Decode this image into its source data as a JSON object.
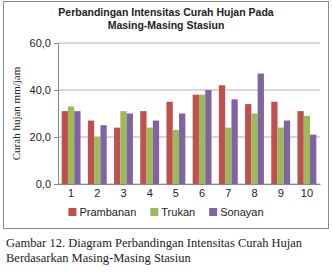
{
  "chart_data": {
    "type": "bar",
    "title": "Perbandingan Intensitas Curah Hujan Pada Masing-Masing Stasiun",
    "y_label": "Curah hujan mm/jam",
    "caption": "Gambar 12. Diagram Perbandingan Intensitas Curah Hujan Berdasarkan Masing-Masing Stasiun",
    "categories": [
      "1",
      "2",
      "3",
      "4",
      "5",
      "6",
      "7",
      "8",
      "9",
      "10"
    ],
    "series": [
      {
        "name": "Prambanan",
        "color": "#c0504d",
        "values": [
          31,
          27,
          24,
          31,
          35,
          38,
          42,
          34,
          35,
          31
        ]
      },
      {
        "name": "Trukan",
        "color": "#9bbb59",
        "values": [
          33,
          20,
          31,
          24,
          23,
          38,
          24,
          30,
          24,
          29
        ]
      },
      {
        "name": "Sonayan",
        "color": "#8064a2",
        "values": [
          31,
          25,
          30,
          27,
          30,
          40,
          36,
          47,
          27,
          21
        ]
      }
    ],
    "ylim": [
      0,
      60
    ],
    "yticks": [
      {
        "value": 0,
        "label": "0,0"
      },
      {
        "value": 20,
        "label": "20,0"
      },
      {
        "value": 40,
        "label": "40,0"
      },
      {
        "value": 60,
        "label": "60,0"
      }
    ],
    "grid": true,
    "legend": "bottom"
  }
}
